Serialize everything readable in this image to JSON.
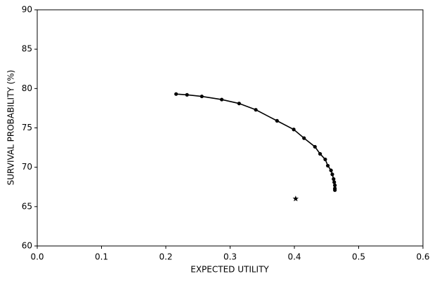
{
  "chart_data": {
    "type": "line",
    "xlabel": "EXPECTED UTILITY",
    "ylabel": "SURVIVAL PROBABILITY (%)",
    "xlim": [
      0,
      0.6
    ],
    "ylim": [
      60,
      90
    ],
    "xticks": [
      {
        "value": 0,
        "label": "0.0"
      },
      0.1,
      0.2,
      0.3,
      0.4,
      0.5,
      0.6
    ],
    "yticks": [
      60,
      65,
      70,
      75,
      80,
      85,
      90
    ],
    "grid": false,
    "series": [
      {
        "color": "#000000",
        "marker": "circle",
        "line": true,
        "x": [
          0.216,
          0.233,
          0.256,
          0.287,
          0.314,
          0.34,
          0.373,
          0.399,
          0.415,
          0.432,
          0.44,
          0.448,
          0.452,
          0.457,
          0.459,
          0.461,
          0.462,
          0.463,
          0.463,
          0.463
        ],
        "values": [
          79.3,
          79.2,
          79.0,
          78.6,
          78.1,
          77.3,
          75.9,
          74.8,
          73.7,
          72.6,
          71.7,
          71.0,
          70.2,
          69.6,
          69.1,
          68.5,
          68.1,
          67.7,
          67.3,
          67.1
        ]
      },
      {
        "color": "#000000",
        "marker": "star",
        "line": false,
        "x": [
          0.402
        ],
        "values": [
          66.0
        ]
      }
    ]
  }
}
